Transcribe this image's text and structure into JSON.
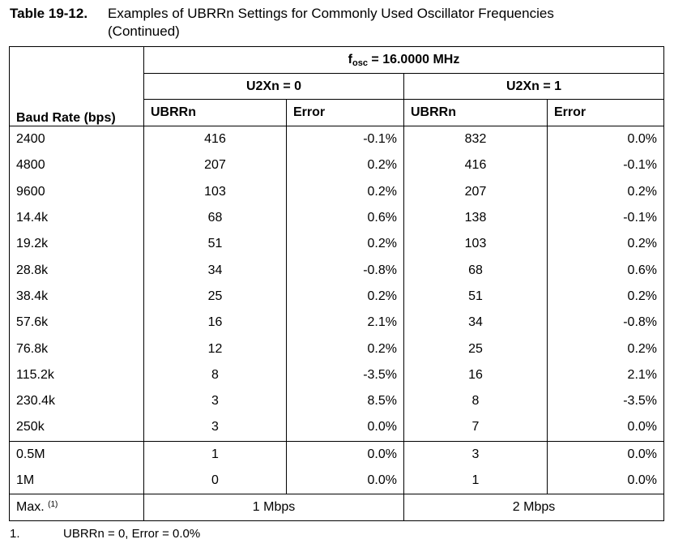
{
  "title": {
    "number": "Table 19-12.",
    "text": "Examples of UBRRn Settings for Commonly Used Oscillator Frequencies",
    "continuation": "(Continued)"
  },
  "header": {
    "baud_label": "Baud Rate (bps)",
    "fosc_f": "f",
    "fosc_sub": "osc",
    "fosc_value": " = 16.0000 MHz",
    "u2x0": "U2Xn = 0",
    "u2x1": "U2Xn = 1",
    "ubrr": "UBRRn",
    "error": "Error"
  },
  "rows": [
    {
      "baud": "2400",
      "u0_ubrr": "416",
      "u0_err": "-0.1%",
      "u1_ubrr": "832",
      "u1_err": "0.0%"
    },
    {
      "baud": "4800",
      "u0_ubrr": "207",
      "u0_err": "0.2%",
      "u1_ubrr": "416",
      "u1_err": "-0.1%"
    },
    {
      "baud": "9600",
      "u0_ubrr": "103",
      "u0_err": "0.2%",
      "u1_ubrr": "207",
      "u1_err": "0.2%"
    },
    {
      "baud": "14.4k",
      "u0_ubrr": "68",
      "u0_err": "0.6%",
      "u1_ubrr": "138",
      "u1_err": "-0.1%"
    },
    {
      "baud": "19.2k",
      "u0_ubrr": "51",
      "u0_err": "0.2%",
      "u1_ubrr": "103",
      "u1_err": "0.2%"
    },
    {
      "baud": "28.8k",
      "u0_ubrr": "34",
      "u0_err": "-0.8%",
      "u1_ubrr": "68",
      "u1_err": "0.6%"
    },
    {
      "baud": "38.4k",
      "u0_ubrr": "25",
      "u0_err": "0.2%",
      "u1_ubrr": "51",
      "u1_err": "0.2%"
    },
    {
      "baud": "57.6k",
      "u0_ubrr": "16",
      "u0_err": "2.1%",
      "u1_ubrr": "34",
      "u1_err": "-0.8%"
    },
    {
      "baud": "76.8k",
      "u0_ubrr": "12",
      "u0_err": "0.2%",
      "u1_ubrr": "25",
      "u1_err": "0.2%"
    },
    {
      "baud": "115.2k",
      "u0_ubrr": "8",
      "u0_err": "-3.5%",
      "u1_ubrr": "16",
      "u1_err": "2.1%"
    },
    {
      "baud": "230.4k",
      "u0_ubrr": "3",
      "u0_err": "8.5%",
      "u1_ubrr": "8",
      "u1_err": "-3.5%"
    },
    {
      "baud": "250k",
      "u0_ubrr": "3",
      "u0_err": "0.0%",
      "u1_ubrr": "7",
      "u1_err": "0.0%"
    },
    {
      "baud": "0.5M",
      "u0_ubrr": "1",
      "u0_err": "0.0%",
      "u1_ubrr": "3",
      "u1_err": "0.0%"
    },
    {
      "baud": "1M",
      "u0_ubrr": "0",
      "u0_err": "0.0%",
      "u1_ubrr": "1",
      "u1_err": "0.0%"
    }
  ],
  "max_row": {
    "label": "Max.",
    "footnote_ref": "(1)",
    "u0": "1 Mbps",
    "u1": "2 Mbps"
  },
  "footnote": {
    "number": "1.",
    "text": "UBRRn = 0, Error = 0.0%"
  }
}
